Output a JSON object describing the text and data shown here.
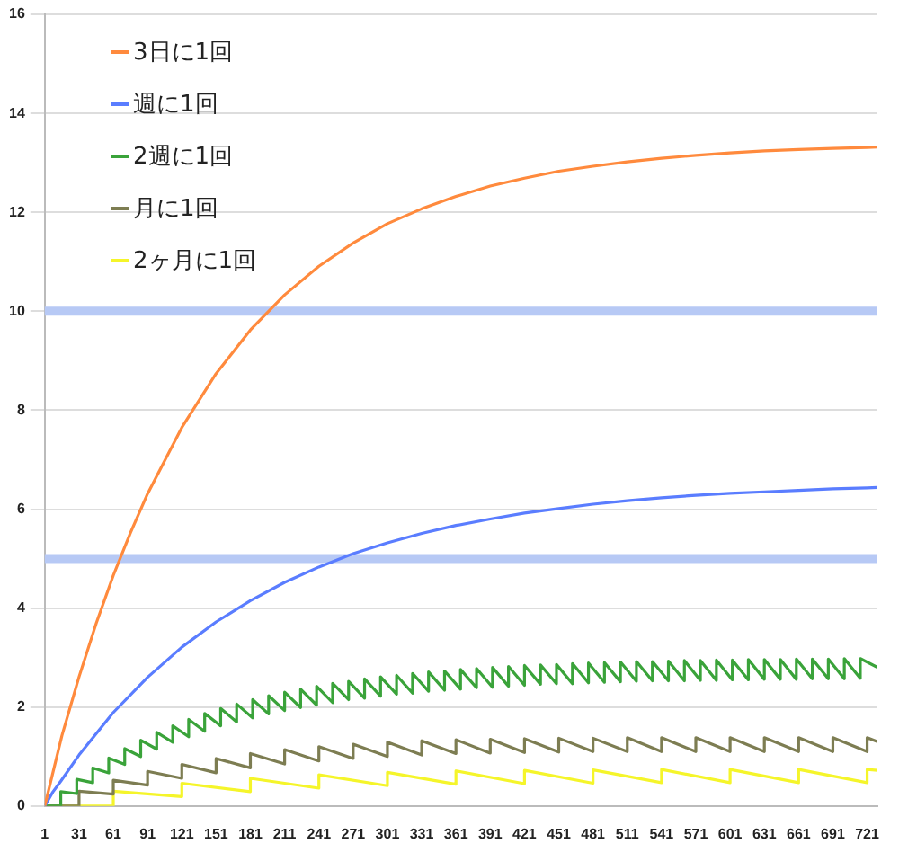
{
  "chart_data": {
    "type": "line",
    "xlim": [
      1,
      730
    ],
    "xticks": [
      1,
      31,
      61,
      91,
      121,
      151,
      181,
      211,
      241,
      271,
      301,
      331,
      361,
      391,
      421,
      451,
      481,
      511,
      541,
      571,
      601,
      631,
      661,
      691,
      721
    ],
    "ylim": [
      0,
      16
    ],
    "yticks": [
      0,
      2,
      4,
      6,
      8,
      10,
      12,
      14,
      16
    ],
    "grid": "y",
    "legend": "top left",
    "marker": "none",
    "line_style": "solid",
    "ref_lines": [
      {
        "axis": "y",
        "value": 10,
        "color": "#b7c9f5"
      },
      {
        "axis": "y",
        "value": 5,
        "color": "#b7c9f5"
      }
    ],
    "series": [
      {
        "name": "3日に1回",
        "color": "#ff8a3d",
        "x": [
          1,
          16,
          31,
          46,
          61,
          76,
          91,
          121,
          151,
          181,
          211,
          241,
          271,
          301,
          331,
          361,
          391,
          421,
          451,
          481,
          511,
          541,
          571,
          601,
          631,
          661,
          691,
          721,
          730
        ],
        "values": [
          0,
          1.42,
          2.61,
          3.69,
          4.66,
          5.52,
          6.31,
          7.65,
          8.74,
          9.62,
          10.33,
          10.91,
          11.38,
          11.77,
          12.07,
          12.32,
          12.53,
          12.69,
          12.83,
          12.93,
          13.02,
          13.09,
          13.15,
          13.2,
          13.24,
          13.27,
          13.29,
          13.31,
          13.32
        ]
      },
      {
        "name": "週に1回",
        "color": "#5a7dff",
        "x": [
          1,
          8,
          15,
          31,
          61,
          91,
          121,
          151,
          181,
          211,
          241,
          271,
          301,
          331,
          361,
          391,
          421,
          451,
          481,
          511,
          541,
          571,
          601,
          631,
          661,
          691,
          721,
          730
        ],
        "values": [
          0,
          0.28,
          0.5,
          1.03,
          1.89,
          2.6,
          3.21,
          3.72,
          4.15,
          4.52,
          4.83,
          5.1,
          5.32,
          5.51,
          5.67,
          5.8,
          5.92,
          6.01,
          6.1,
          6.17,
          6.23,
          6.28,
          6.32,
          6.35,
          6.38,
          6.41,
          6.43,
          6.44
        ]
      },
      {
        "name": "2週に1回",
        "color": "#3aa33a",
        "x": [
          1,
          15,
          15,
          29,
          29,
          43,
          43,
          57,
          57,
          71,
          71,
          85,
          85,
          99,
          99,
          113,
          113,
          127,
          127,
          141,
          141,
          155,
          155,
          169,
          169,
          183,
          183,
          197,
          197,
          211,
          211,
          225,
          225,
          239,
          239,
          253,
          253,
          267,
          267,
          281,
          281,
          295,
          295,
          309,
          309,
          323,
          323,
          337,
          337,
          351,
          351,
          365,
          365,
          379,
          379,
          393,
          393,
          407,
          407,
          421,
          421,
          435,
          435,
          449,
          449,
          463,
          463,
          477,
          477,
          491,
          491,
          505,
          505,
          519,
          519,
          533,
          533,
          547,
          547,
          561,
          561,
          575,
          575,
          589,
          589,
          603,
          603,
          617,
          617,
          631,
          631,
          645,
          645,
          659,
          659,
          673,
          673,
          687,
          687,
          701,
          701,
          715,
          715,
          730
        ],
        "values": [
          0,
          0,
          0.29,
          0.25,
          0.54,
          0.47,
          0.77,
          0.67,
          0.97,
          0.84,
          1.16,
          1.0,
          1.33,
          1.15,
          1.49,
          1.29,
          1.62,
          1.4,
          1.75,
          1.51,
          1.87,
          1.62,
          1.97,
          1.7,
          2.06,
          1.78,
          2.15,
          1.86,
          2.23,
          1.93,
          2.3,
          1.99,
          2.36,
          2.04,
          2.42,
          2.09,
          2.48,
          2.15,
          2.52,
          2.18,
          2.57,
          2.22,
          2.61,
          2.26,
          2.64,
          2.28,
          2.68,
          2.32,
          2.71,
          2.34,
          2.73,
          2.36,
          2.76,
          2.39,
          2.78,
          2.4,
          2.8,
          2.42,
          2.82,
          2.44,
          2.84,
          2.46,
          2.85,
          2.47,
          2.86,
          2.47,
          2.88,
          2.49,
          2.89,
          2.5,
          2.9,
          2.51,
          2.91,
          2.52,
          2.92,
          2.53,
          2.92,
          2.53,
          2.93,
          2.53,
          2.94,
          2.54,
          2.94,
          2.54,
          2.95,
          2.55,
          2.95,
          2.55,
          2.96,
          2.56,
          2.96,
          2.56,
          2.96,
          2.56,
          2.97,
          2.57,
          2.97,
          2.57,
          2.97,
          2.57,
          2.98,
          2.58,
          2.98,
          2.8
        ]
      },
      {
        "name": "月に1回",
        "color": "#7d7d52",
        "x": [
          1,
          31,
          31,
          61,
          61,
          91,
          91,
          121,
          121,
          151,
          151,
          181,
          181,
          211,
          211,
          241,
          241,
          271,
          271,
          301,
          301,
          331,
          331,
          361,
          361,
          391,
          391,
          421,
          421,
          451,
          451,
          481,
          481,
          511,
          511,
          541,
          541,
          571,
          571,
          601,
          601,
          631,
          631,
          661,
          661,
          691,
          691,
          721,
          721,
          730
        ],
        "values": [
          0,
          0,
          0.3,
          0.24,
          0.52,
          0.42,
          0.7,
          0.56,
          0.84,
          0.67,
          0.96,
          0.77,
          1.06,
          0.85,
          1.14,
          0.91,
          1.2,
          0.96,
          1.25,
          1.0,
          1.29,
          1.03,
          1.32,
          1.06,
          1.34,
          1.07,
          1.35,
          1.08,
          1.36,
          1.09,
          1.37,
          1.1,
          1.37,
          1.1,
          1.38,
          1.1,
          1.38,
          1.1,
          1.38,
          1.1,
          1.38,
          1.1,
          1.38,
          1.1,
          1.38,
          1.1,
          1.38,
          1.1,
          1.38,
          1.3
        ]
      },
      {
        "name": "2ヶ月に1回",
        "color": "#f5f52a",
        "x": [
          1,
          61,
          61,
          121,
          121,
          181,
          181,
          241,
          241,
          301,
          301,
          361,
          361,
          421,
          421,
          481,
          481,
          541,
          541,
          601,
          601,
          661,
          661,
          721,
          721,
          730
        ],
        "values": [
          0,
          0,
          0.3,
          0.19,
          0.46,
          0.29,
          0.56,
          0.36,
          0.63,
          0.41,
          0.68,
          0.44,
          0.71,
          0.45,
          0.72,
          0.46,
          0.73,
          0.47,
          0.74,
          0.47,
          0.74,
          0.47,
          0.74,
          0.47,
          0.74,
          0.72
        ]
      }
    ]
  }
}
